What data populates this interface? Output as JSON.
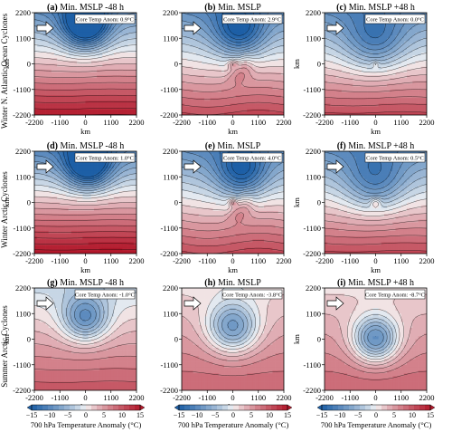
{
  "figure": {
    "row_labels": [
      "Winter N. Atlantic Ocean Cyclones",
      "Winter Arctic Cyclones",
      "Summer Arctic Cyclones"
    ],
    "colorbar_label": "700 hPa Temperature Anomaly (°C)"
  },
  "chart_data": [
    {
      "type": "contour",
      "panel": "(a)",
      "title": "Min. MSLP -48 h",
      "annotation": "Core Temp Anom: 0.9°C",
      "xlabel": "km",
      "ylabel": "km",
      "xlim": [
        -2200,
        2200
      ],
      "ylim": [
        -2200,
        2200
      ],
      "xticks": [
        -2200,
        -1100,
        0,
        1100,
        2200
      ],
      "yticks": [
        -2200,
        -1100,
        0,
        1100,
        2200
      ],
      "field": {
        "base": 3,
        "grad": 6,
        "lows": [
          {
            "x": 0.0,
            "y": 1650,
            "amp": 16,
            "r": 1000
          }
        ],
        "wave": 150,
        "front": 0
      }
    },
    {
      "type": "contour",
      "panel": "(b)",
      "title": "Min. MSLP",
      "annotation": "Core Temp Anom: 2.9°C",
      "xlabel": "km",
      "ylabel": "",
      "xlim": [
        -2200,
        2200
      ],
      "ylim": [
        -2200,
        2200
      ],
      "xticks": [
        -2200,
        -1100,
        0,
        1100,
        2200
      ],
      "yticks": [
        -2200,
        -1100,
        0,
        1100,
        2200
      ],
      "field": {
        "base": 1,
        "grad": 5,
        "lows": [
          {
            "x": 300,
            "y": 1400,
            "amp": 11,
            "r": 1100
          }
        ],
        "wave": 500,
        "front": 1,
        "core": {
          "x": 0,
          "y": 0,
          "amp": 5,
          "r": 200
        }
      }
    },
    {
      "type": "contour",
      "panel": "(c)",
      "title": "Min. MSLP +48 h",
      "annotation": "Core Temp Anom: 0.0°C",
      "xlabel": "km",
      "ylabel": "km",
      "xlim": [
        -2200,
        2200
      ],
      "ylim": [
        -2200,
        2200
      ],
      "xticks": [
        -2200,
        -1100,
        0,
        1100,
        2200
      ],
      "yticks": [
        -2200,
        -1100,
        0,
        1100,
        2200
      ],
      "field": {
        "base": 1,
        "grad": 5,
        "lows": [
          {
            "x": 0,
            "y": 1000,
            "amp": 8,
            "r": 1300
          }
        ],
        "wave": 200,
        "front": 0,
        "core": {
          "x": 0,
          "y": 0,
          "amp": 4,
          "r": 120
        }
      }
    },
    {
      "type": "contour",
      "panel": "(d)",
      "title": "Min. MSLP -48 h",
      "annotation": "Core Temp Anom: 1.0°C",
      "xlabel": "km",
      "ylabel": "km",
      "xlim": [
        -2200,
        2200
      ],
      "ylim": [
        -2200,
        2200
      ],
      "xticks": [
        -2200,
        -1100,
        0,
        1100,
        2200
      ],
      "yticks": [
        -2200,
        -1100,
        0,
        1100,
        2200
      ],
      "field": {
        "base": 3,
        "grad": 6.5,
        "lows": [
          {
            "x": 100,
            "y": 1600,
            "amp": 15,
            "r": 1000
          }
        ],
        "wave": 120,
        "front": 0
      }
    },
    {
      "type": "contour",
      "panel": "(e)",
      "title": "Min. MSLP",
      "annotation": "Core Temp Anom: 4.0°C",
      "xlabel": "km",
      "ylabel": "",
      "xlim": [
        -2200,
        2200
      ],
      "ylim": [
        -2200,
        2200
      ],
      "xticks": [
        -2200,
        -1100,
        0,
        1100,
        2200
      ],
      "yticks": [
        -2200,
        -1100,
        0,
        1100,
        2200
      ],
      "field": {
        "base": 1,
        "grad": 5,
        "lows": [
          {
            "x": 400,
            "y": 1300,
            "amp": 11,
            "r": 1100
          }
        ],
        "wave": 600,
        "front": 1,
        "core": {
          "x": 0,
          "y": 0,
          "amp": 6,
          "r": 180
        }
      }
    },
    {
      "type": "contour",
      "panel": "(f)",
      "title": "Min. MSLP +48 h",
      "annotation": "Core Temp Anom: 0.5°C",
      "xlabel": "km",
      "ylabel": "km",
      "xlim": [
        -2200,
        2200
      ],
      "ylim": [
        -2200,
        2200
      ],
      "xticks": [
        -2200,
        -1100,
        0,
        1100,
        2200
      ],
      "yticks": [
        -2200,
        -1100,
        0,
        1100,
        2200
      ],
      "field": {
        "base": 1,
        "grad": 5,
        "lows": [
          {
            "x": 0,
            "y": 900,
            "amp": 8,
            "r": 1300
          }
        ],
        "wave": 200,
        "front": 0,
        "core": {
          "x": 0,
          "y": 0,
          "amp": 5,
          "r": 220
        }
      }
    },
    {
      "type": "contour",
      "panel": "(g)",
      "title": "Min. MSLP -48 h",
      "annotation": "Core Temp Anom: -1.0°C",
      "xlabel": "km",
      "ylabel": "km",
      "xlim": [
        -2200,
        2200
      ],
      "ylim": [
        -2200,
        2200
      ],
      "xticks": [
        -2200,
        -1100,
        0,
        1100,
        2200
      ],
      "yticks": [
        -2200,
        -1100,
        0,
        1100,
        2200
      ],
      "field": {
        "base": 4,
        "grad": 3,
        "lows": [
          {
            "x": 0,
            "y": 900,
            "amp": 11,
            "r": 1000
          }
        ],
        "wave": 100,
        "front": 0
      }
    },
    {
      "type": "contour",
      "panel": "(h)",
      "title": "Min. MSLP",
      "annotation": "Core Temp Anom: -3.8°C",
      "xlabel": "km",
      "ylabel": "",
      "xlim": [
        -2200,
        2200
      ],
      "ylim": [
        -2200,
        2200
      ],
      "xticks": [
        -2200,
        -1100,
        0,
        1100,
        2200
      ],
      "yticks": [
        -2200,
        -1100,
        0,
        1100,
        2200
      ],
      "field": {
        "base": 5,
        "grad": 2,
        "lows": [
          {
            "x": 0,
            "y": 500,
            "amp": 12,
            "r": 1100
          }
        ],
        "wave": 0,
        "front": 0
      }
    },
    {
      "type": "contour",
      "panel": "(i)",
      "title": "Min. MSLP +48 h",
      "annotation": "Core Temp Anom: -8.7°C",
      "xlabel": "km",
      "ylabel": "km",
      "xlim": [
        -2200,
        2200
      ],
      "ylim": [
        -2200,
        2200
      ],
      "xticks": [
        -2200,
        -1100,
        0,
        1100,
        2200
      ],
      "yticks": [
        -2200,
        -1100,
        0,
        1100,
        2200
      ],
      "field": {
        "base": 5,
        "grad": 2,
        "lows": [
          {
            "x": 0,
            "y": 0,
            "amp": 14,
            "r": 1000
          }
        ],
        "wave": 0,
        "front": 0
      }
    }
  ],
  "colorbars": [
    {
      "ticks": [
        -15,
        -10,
        -5,
        0,
        5,
        10,
        15
      ],
      "range": [
        -15,
        15
      ],
      "label": "700 hPa Temperature Anomaly (°C)"
    },
    {
      "ticks": [
        -15,
        -10,
        -5,
        0,
        5,
        10,
        15
      ],
      "range": [
        -15,
        15
      ],
      "label": "700 hPa Temperature Anomaly (°C)"
    },
    {
      "ticks": [
        -15,
        -10,
        -5,
        0,
        5,
        10,
        15
      ],
      "range": [
        -15,
        15
      ],
      "label": "700 hPa Temperature Anomaly (°C)"
    }
  ],
  "colors": {
    "cold": "#1d5fa6",
    "neutral": "#f7f7f7",
    "warm": "#b2182b"
  }
}
